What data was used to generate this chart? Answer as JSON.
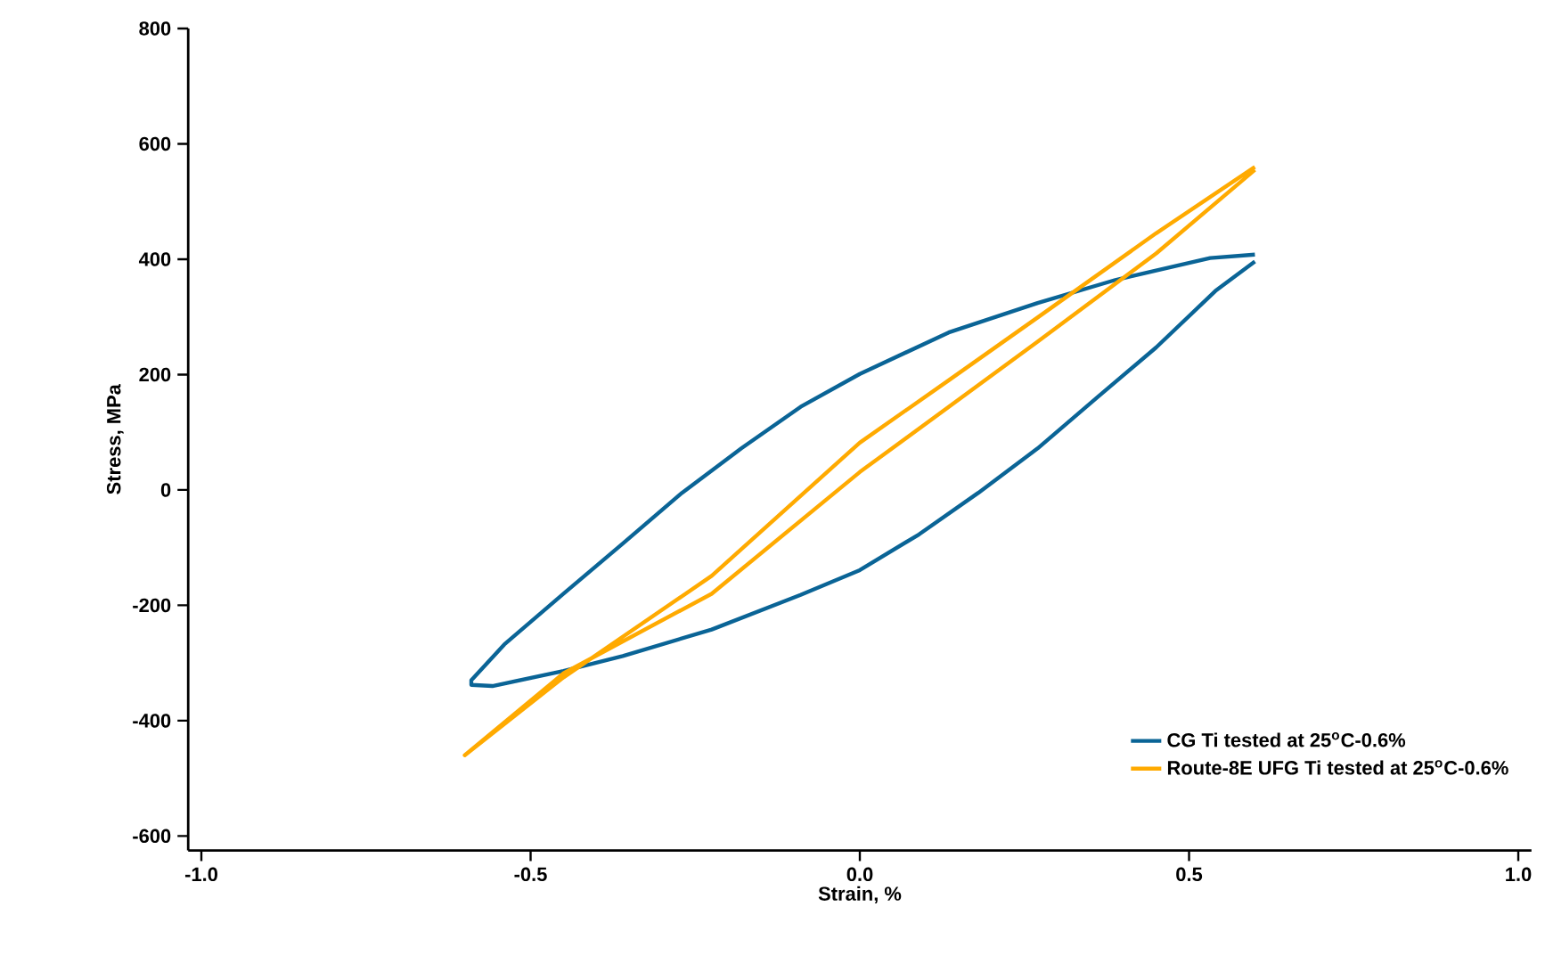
{
  "chart_data": {
    "type": "line",
    "xlabel": "Strain, %",
    "ylabel": "Stress, MPa",
    "xlim": [
      -1.02,
      1.02
    ],
    "ylim": [
      -625,
      800
    ],
    "xticks": [
      {
        "value": -1.0,
        "label": "-1.0"
      },
      {
        "value": -0.5,
        "label": "-0.5"
      },
      {
        "value": 0.0,
        "label": "0.0"
      },
      {
        "value": 0.5,
        "label": "0.5"
      },
      {
        "value": 1.0,
        "label": "1.0"
      }
    ],
    "yticks": [
      -600,
      -400,
      -200,
      0,
      200,
      400,
      600,
      800
    ],
    "legend": "bottom right",
    "series": [
      {
        "name": "CG Ti tested at 25$^{o}$C-0.6%",
        "color": "#0a6496",
        "x": [
          0.6,
          0.532,
          0.388,
          0.27,
          0.135,
          0.0,
          -0.09,
          -0.18,
          -0.27,
          -0.36,
          -0.45,
          -0.54,
          -0.59,
          -0.59,
          -0.558,
          -0.45,
          -0.36,
          -0.225,
          -0.09,
          0.0,
          0.09,
          0.18,
          0.27,
          0.36,
          0.45,
          0.54,
          0.6
        ],
        "values": [
          408,
          402,
          364,
          324,
          273,
          201,
          144,
          72,
          -5,
          -93,
          -180,
          -268,
          -330,
          -338,
          -340,
          -314,
          -288,
          -242,
          -182,
          -139,
          -77,
          -5,
          72,
          160,
          247,
          345,
          396
        ]
      },
      {
        "name": "Route-8E UFG Ti tested at 25$^{o}$C-0.6%",
        "color": "#ffaa00",
        "x": [
          0.6,
          0.45,
          0.27,
          0.135,
          0.0,
          -0.225,
          -0.45,
          -0.6,
          -0.45,
          -0.225,
          0.0,
          0.27,
          0.45,
          0.6
        ],
        "values": [
          560,
          445,
          299,
          190,
          82,
          -149,
          -325,
          -460,
          -318,
          -180,
          31,
          257,
          410,
          555
        ]
      }
    ]
  }
}
